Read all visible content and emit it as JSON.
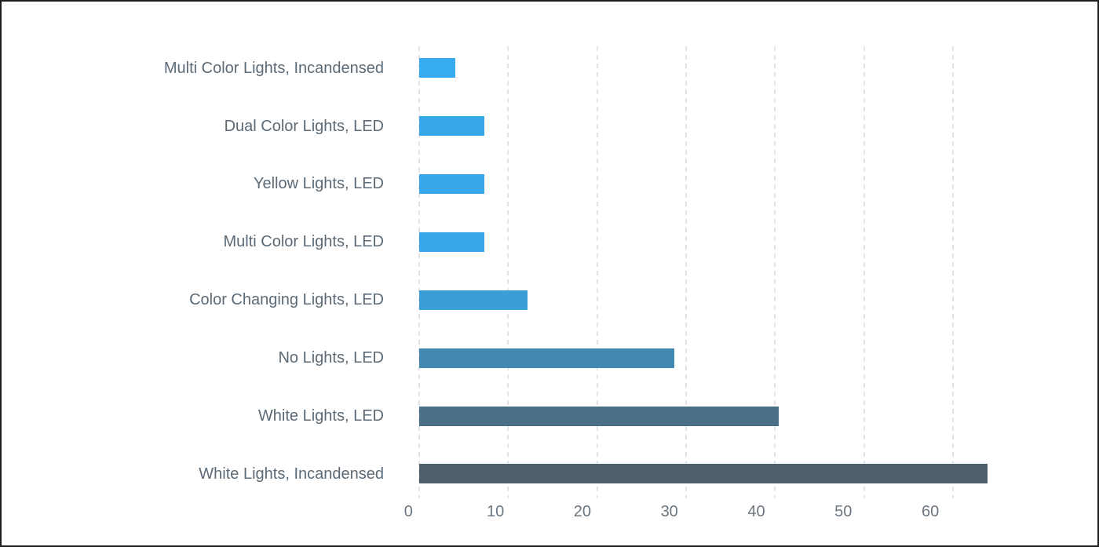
{
  "chart_data": {
    "type": "bar",
    "orientation": "horizontal",
    "title": "",
    "xlabel": "",
    "ylabel": "",
    "legend": "none",
    "grid": "dashed-vertical",
    "xlim": [
      0,
      67
    ],
    "xticks": [
      "0",
      "10",
      "20",
      "30",
      "40",
      "50",
      "60"
    ],
    "xtick_values": [
      0,
      10,
      20,
      30,
      40,
      50,
      60
    ],
    "categories": [
      "Multi Color Lights, Incandensed",
      "Dual Color Lights, LED",
      "Yellow Lights, LED",
      "Multi Color Lights, LED",
      "Color Changing Lights, LED",
      "No Lights, LED",
      "White Lights, LED",
      "White Lights, Incandensed"
    ],
    "values": [
      4.1,
      7.3,
      7.3,
      7.3,
      12.2,
      28.7,
      40.4,
      63.9
    ],
    "bar_colors": [
      "#36abf0",
      "#38a7e8",
      "#38a7e8",
      "#37a5e6",
      "#3a9fd9",
      "#4289b1",
      "#4a6f88",
      "#4d5f6b"
    ]
  },
  "style": {
    "background": "#ffffff",
    "frame_border_color": "#1c1f1c",
    "gridline_color": "#e2e5e7",
    "category_label_color": "#5b6a76",
    "tick_label_color": "#6b7680"
  }
}
